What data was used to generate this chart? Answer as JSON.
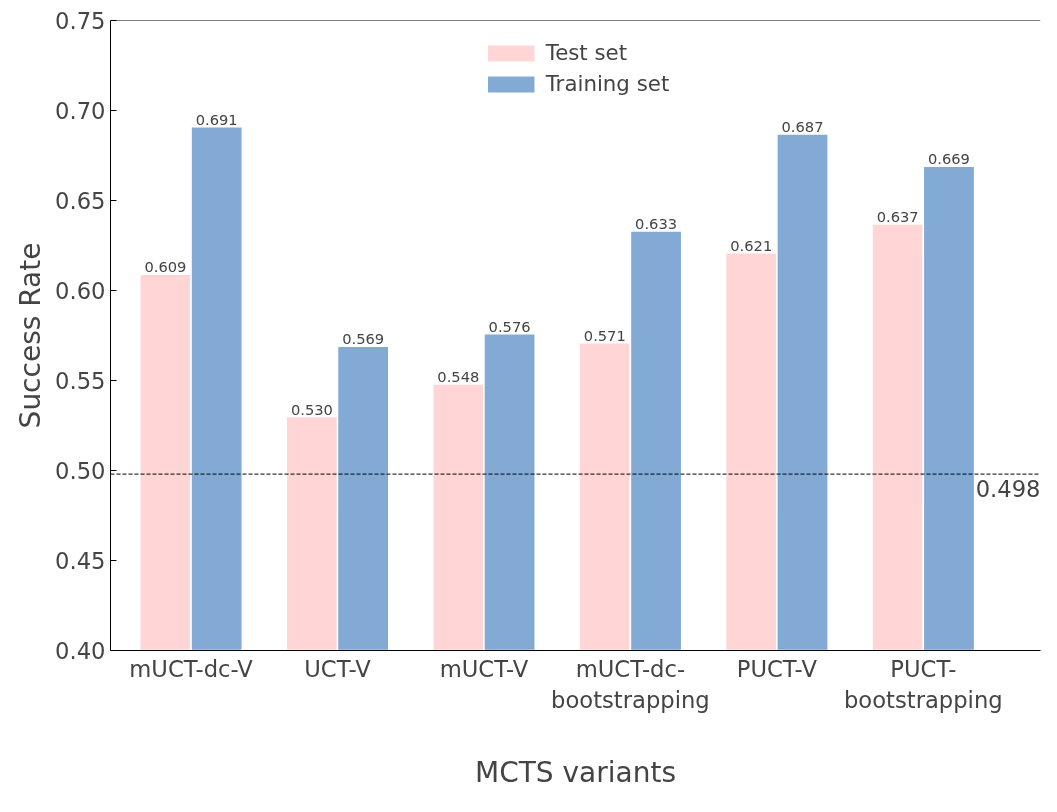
{
  "chart_data": {
    "type": "bar",
    "xlabel": "MCTS variants",
    "ylabel": "Success Rate",
    "categories": [
      "mUCT-dc-V",
      "UCT-V",
      "mUCT-V",
      "mUCT-dc-\nbootstrapping",
      "PUCT-V",
      "PUCT-\nbootstrapping"
    ],
    "series": [
      {
        "name": "Test set",
        "color": "#ffd5d5",
        "values": [
          0.609,
          0.53,
          0.548,
          0.571,
          0.621,
          0.637
        ],
        "value_labels": [
          "0.609",
          "0.530",
          "0.548",
          "0.571",
          "0.621",
          "0.637"
        ]
      },
      {
        "name": "Training set",
        "color": "#82aad4",
        "values": [
          0.691,
          0.569,
          0.576,
          0.633,
          0.687,
          0.669
        ],
        "value_labels": [
          "0.691",
          "0.569",
          "0.576",
          "0.633",
          "0.687",
          "0.669"
        ]
      }
    ],
    "ylim": [
      0.4,
      0.75
    ],
    "yticks": [
      {
        "value": 0.4,
        "label": "0.40"
      },
      0.45,
      {
        "value": 0.5,
        "label": "0.50"
      },
      0.55,
      {
        "value": 0.6,
        "label": "0.60"
      },
      0.65,
      {
        "value": 0.7,
        "label": "0.70"
      },
      0.75
    ],
    "ref_lines": [
      {
        "axis": "y",
        "value": 0.498,
        "label": "0.498",
        "color": "#000000",
        "line_style": "dashed"
      }
    ],
    "legend": "top",
    "grid": false
  }
}
